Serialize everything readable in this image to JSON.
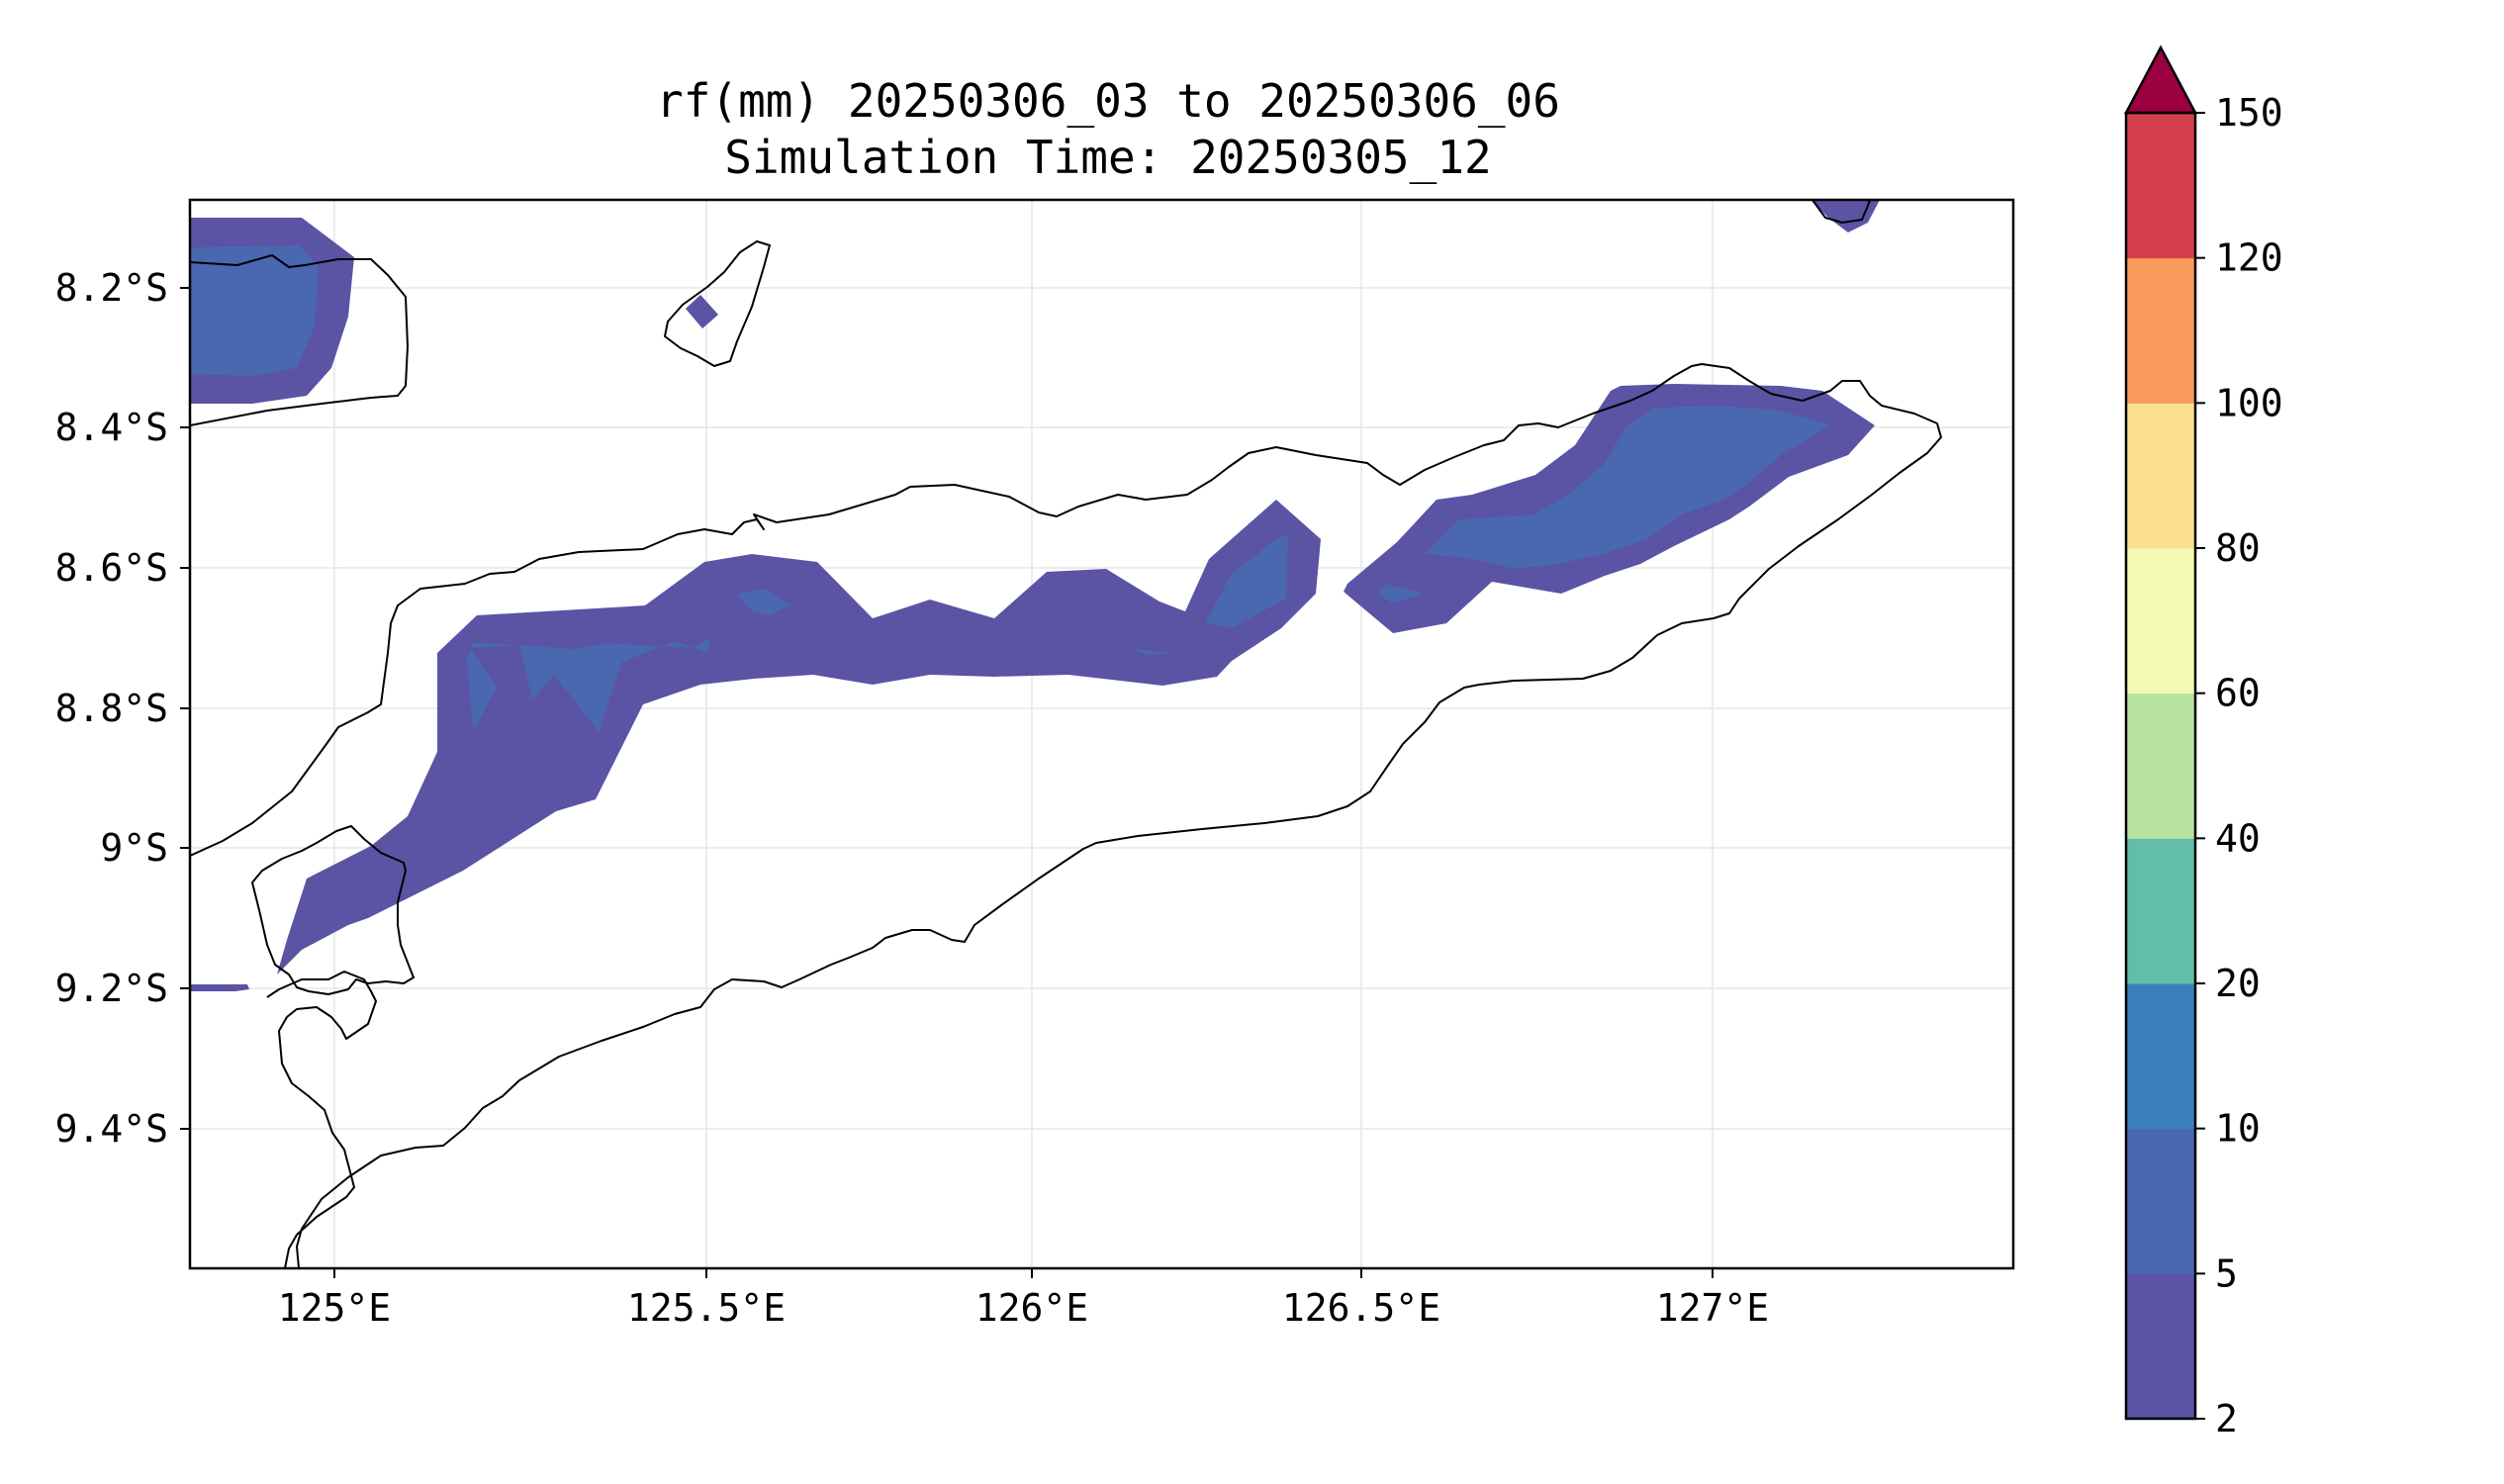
{
  "title": {
    "line1": "rf(mm) 20250306_03 to 20250306_06",
    "line2": "Simulation Time: 20250305_12"
  },
  "map": {
    "lon_range": [
      124.83,
      127.42
    ],
    "lat_range": [
      -9.6,
      -8.08
    ],
    "x_ticks": [
      "125°E",
      "125.5°E",
      "126°E",
      "126.5°E",
      "127°E"
    ],
    "y_ticks": [
      "8.2°S",
      "8.4°S",
      "8.6°S",
      "8.8°S",
      "9°S",
      "9.2°S",
      "9.4°S"
    ],
    "grid": true
  },
  "colorbar": {
    "levels": [
      "2",
      "5",
      "10",
      "20",
      "40",
      "60",
      "80",
      "100",
      "120",
      "150"
    ],
    "colors": [
      "#5b53a4",
      "#4a67b1",
      "#3a7fba",
      "#62bea6",
      "#b8e2a1",
      "#f3f9b0",
      "#fbe18f",
      "#f99b5a",
      "#d43f4e"
    ],
    "extend_color": "#9b0041",
    "extend": "max"
  }
}
